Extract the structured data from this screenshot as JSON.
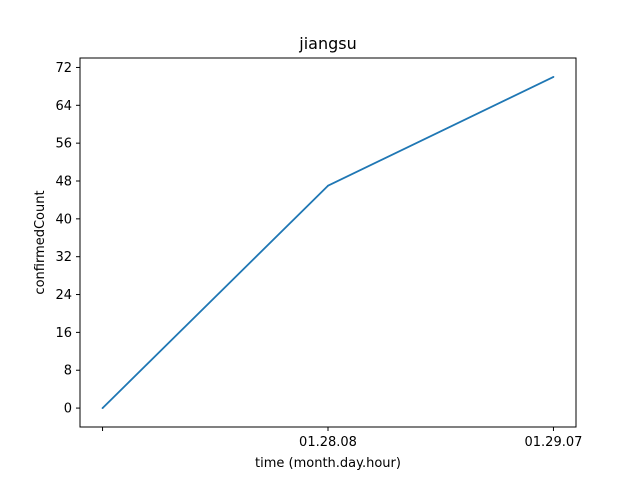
{
  "chart_data": {
    "type": "line",
    "title": "jiangsu",
    "xlabel": "time (month.day.hour)",
    "ylabel": "confirmedCount",
    "x_tick_labels": [
      "",
      "01.28.08",
      "01.29.07"
    ],
    "series": [
      {
        "values": [
          0,
          47,
          70
        ],
        "color": "#1f77b4"
      }
    ],
    "ylim": [
      -4,
      74
    ],
    "yticks": [
      0,
      8,
      16,
      24,
      32,
      40,
      48,
      56,
      64,
      72
    ],
    "grid": false
  }
}
